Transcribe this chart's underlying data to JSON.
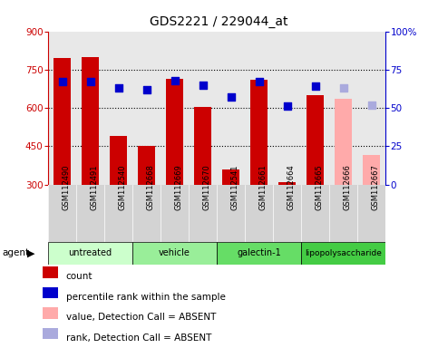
{
  "title": "GDS2221 / 229044_at",
  "samples": [
    "GSM112490",
    "GSM112491",
    "GSM112540",
    "GSM112668",
    "GSM112669",
    "GSM112670",
    "GSM112541",
    "GSM112661",
    "GSM112664",
    "GSM112665",
    "GSM112666",
    "GSM112667"
  ],
  "bar_values": [
    795,
    800,
    490,
    450,
    715,
    605,
    360,
    710,
    310,
    650,
    635,
    415
  ],
  "bar_colors": [
    "#cc0000",
    "#cc0000",
    "#cc0000",
    "#cc0000",
    "#cc0000",
    "#cc0000",
    "#cc0000",
    "#cc0000",
    "#cc0000",
    "#cc0000",
    "#ffaaaa",
    "#ffaaaa"
  ],
  "dot_values": [
    67,
    67,
    63,
    62,
    68,
    65,
    57,
    67,
    51,
    64,
    63,
    52
  ],
  "dot_present": [
    true,
    true,
    true,
    true,
    true,
    true,
    true,
    true,
    true,
    true,
    false,
    false
  ],
  "groups": [
    {
      "label": "untreated",
      "start": 0,
      "end": 3,
      "color": "#ccffcc"
    },
    {
      "label": "vehicle",
      "start": 3,
      "end": 6,
      "color": "#99ee99"
    },
    {
      "label": "galectin-1",
      "start": 6,
      "end": 9,
      "color": "#66dd66"
    },
    {
      "label": "lipopolysaccharide",
      "start": 9,
      "end": 12,
      "color": "#44cc44"
    }
  ],
  "ylim_left": [
    300,
    900
  ],
  "ylim_right": [
    0,
    100
  ],
  "yticks_left": [
    300,
    450,
    600,
    750,
    900
  ],
  "yticks_right": [
    0,
    25,
    50,
    75,
    100
  ],
  "left_color": "#cc0000",
  "right_color": "#0000cc",
  "background_color": "#ffffff",
  "plot_bg": "#e8e8e8",
  "legend_items": [
    {
      "label": "count",
      "color": "#cc0000"
    },
    {
      "label": "percentile rank within the sample",
      "color": "#0000cc"
    },
    {
      "label": "value, Detection Call = ABSENT",
      "color": "#ffaaaa"
    },
    {
      "label": "rank, Detection Call = ABSENT",
      "color": "#aaaadd"
    }
  ],
  "grid_yticks": [
    750,
    600,
    450
  ]
}
